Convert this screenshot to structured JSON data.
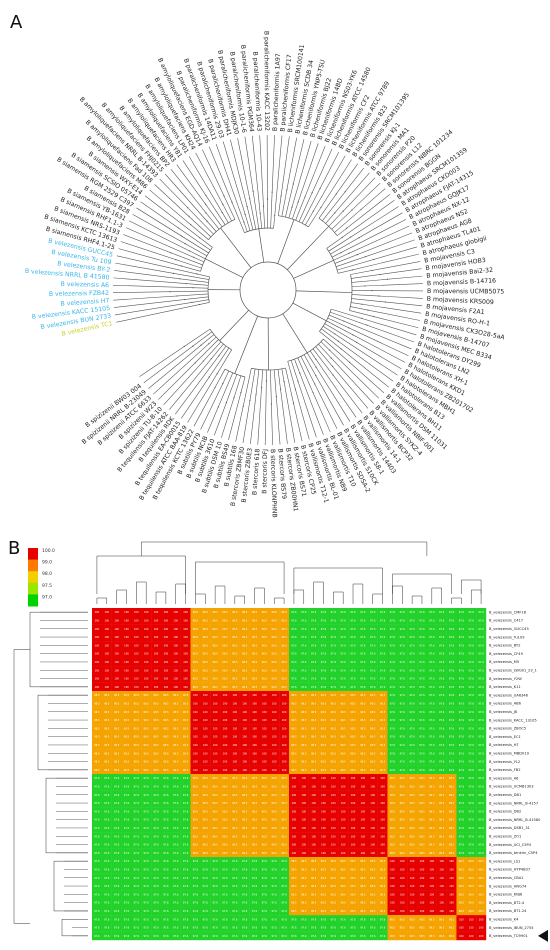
{
  "figure": {
    "panel_a_label": "A",
    "panel_b_label": "B"
  },
  "panel_a": {
    "type": "circular-phylogenetic-tree",
    "colors": {
      "branch": "#555555",
      "label": "#222222",
      "highlight_cyan": "#38b6e8",
      "highlight_yellow": "#c8d22a"
    },
    "taxa": [
      "B velezensis TC1",
      "B velezensis BUN 2733",
      "B velezensis KACC 15105",
      "B velezensis H7",
      "B velezensis FZB42",
      "B velezensis A6",
      "B velezensis NRRL B 41580",
      "B velezensis BY-2",
      "B velezensis Tu 109",
      "B velezensis GUCC45",
      "B siamensis RHF4.1-25",
      "B siamensis KCTC 13613",
      "B siamensis NRS-1193",
      "B siamensis RHF1.1-3",
      "B siamensis YB-1631",
      "B siamensis B28",
      "B siamensis RGM 2529 C397",
      "B siamensis SCSIO 05746",
      "B siamensis WXY-E14",
      "B amyloliquefaciens M86",
      "B amyloliquefaciens Fad 108",
      "B amyloliquefaciens NRRL B-14393",
      "B amyloliquefaciens FHJ0215",
      "B amyloliquefaciens BP2",
      "B amyloliquefaciens HR3",
      "B amyloliquefaciens Y81",
      "B amyloliquefaciens LP01",
      "B amyloliquefaciens KH24",
      "B amyloliquefaciens EGD-AQ14",
      "B paralicheniformis KJ-16",
      "B paralicheniformis 14DA11",
      "B paralicheniformis 29.03",
      "B paralicheniformis DH41",
      "B paralicheniformis MDJK30",
      "B paralicheniformis 10-1-6",
      "B paralicheniformis PGM364",
      "B paralicheniformis 10-43",
      "B paralicheniformis KACC 13202",
      "B paralicheniformis 1A97",
      "B paralicheniformis CF17",
      "B licheniformis SRCM100141",
      "B licheniformis SCDB 34",
      "B licheniformis YNP5-TSU",
      "B licheniformis BJ22",
      "B licheniformis 14BD",
      "B licheniformis NS03-YK6",
      "B licheniformis ATCC 14580",
      "B licheniformis CF2",
      "B licheniformis ATCC 9789",
      "B licheniformis 823",
      "B sonorensis SRCM101395",
      "B sonorensis KJ-1",
      "B sonorensis MA1",
      "B sonorensis P20",
      "B sonorensis L12",
      "B sonorensis NBRC 101234",
      "B sonorensis BGGN",
      "B atrophaeus SRCM101359",
      "B atrophaeus CKD003",
      "B atrophaeus FJAT-14315",
      "B atrophaeus GQJK17",
      "B atrophaeus NX-12",
      "B atrophaeus NS2",
      "B atrophaeus AG8",
      "B atrophaeus TL401",
      "B atrophaeus globigii",
      "B mojavensis C3",
      "B mojavensis HOB3",
      "B mojavensis Bai2-32",
      "B mojavensis B-14716",
      "B mojavensis UCMB5075",
      "B mojavensis KRS009",
      "B mojavensis F2A1",
      "B mojavensis RO-H-1",
      "B mojavensis CK3O28-5aA",
      "B mojavensis B-14707",
      "B mojavensis MEC B334",
      "B halotolerans DY299",
      "B halotolerans LN2",
      "B halotolerans XH-1",
      "B halotolerans KKD1",
      "B halotolerans ZB201702",
      "B halotolerans MBH1",
      "B halotolerans B13",
      "B halotolerans BH11",
      "B vallismortis DSM 11031",
      "B vallismortis NBIF-001",
      "B vallismortis SYKZ-4",
      "B vallismortis BCP32",
      "B vallismortis 14-1",
      "B vallismortis 14403",
      "B vallismortis 58-1",
      "B vallismortis S10CK",
      "B vallismortis SDSA-2",
      "B vallismortis T10",
      "B vallismortis NB9",
      "B vallismortis BL-01",
      "B vallismortis T12-1",
      "B stercoris CP25",
      "B stercoris BS71",
      "B stercoris ZB00HN1",
      "B stercoris BS79",
      "B stercoris KLONPHNB 1",
      "B stercoris DFJ",
      "B stercoris 618",
      "B stercoris ZB0E3",
      "B stercoris ZBMF30",
      "B subtilis 168",
      "B subtilis BS49",
      "B subtilis DSM 10",
      "B subtilis 3610",
      "B subtilis NCIB",
      "B subtilis PY79",
      "B tequilensis KCTC 13622",
      "B tequilensis ATCC BAA-819",
      "B tequilensis EA-CB0015",
      "B tequilensis RDK",
      "B tequilensis FJAT-14262",
      "B spizizenii TU-B-10",
      "B spizizenii W23",
      "B spizizenii ATCC 6633",
      "B spizizenii NRRL B-23049",
      "B spizizenii BW03 004"
    ],
    "highlighted_taxa_cyan": [
      1,
      2,
      3,
      4,
      5,
      6,
      7,
      8,
      9
    ],
    "highlighted_taxa_yellow": [
      0
    ]
  },
  "panel_b": {
    "type": "heatmap",
    "legend": {
      "ticks": [
        "100.0",
        "99.0",
        "98.0",
        "97.5",
        "97.0"
      ],
      "colors": [
        "#e60000",
        "#ff7a00",
        "#f2d000",
        "#9be600",
        "#00d400"
      ]
    },
    "strains": [
      "B_velezensis_CMF18",
      "B_velezensis_C417",
      "B_velezensis_GUCC45",
      "B_velezensis_Tu109",
      "B_velezensis_BY2",
      "B_velezensis_CF49",
      "B_velezensis_M5",
      "B_velezensis_LWG01_23_1",
      "B_velezensis_Y2W",
      "B_velezensis_K11",
      "B_velezensis_UA6346",
      "B_velezensis_AB6",
      "B_velezensis_J8",
      "B_velezensis_KACC_13105",
      "B_velezensis_ZBOC5",
      "B_velezensis_EC1",
      "B_velezensis_H7",
      "B_velezensis_MBD019",
      "B_velezensis_YL2",
      "B_velezensis_FB2",
      "B_velezensis_A6",
      "B_velezensis_UCMB1303",
      "B_velezensis_DB1",
      "B_velezensis_NRRL_B-4157",
      "B_velezensis_DB2",
      "B_velezensis_NRRL_B-41580",
      "B_velezensis_DSB1_31",
      "B_velezensis_ZO1",
      "B_velezensis_UCI_C5P4",
      "B_velezensis_tenkrin_C5P4",
      "B_velezensis_LS1",
      "B_velezensis_HYP4B37",
      "B_velezensis_CBA1",
      "B_velezensis_HNG74",
      "B_velezensis_KNJ6",
      "B_velezensis_BT2.4",
      "B_velezensis_BT1.24",
      "B_velezensis_K4",
      "B_velezensis_IBUN_2755",
      "B_velezensis_TC9H01"
    ],
    "cluster_blocks": [
      {
        "start": 0,
        "end": 9,
        "label_mode": "red"
      },
      {
        "start": 10,
        "end": 19,
        "label_mode": "red"
      },
      {
        "start": 20,
        "end": 29,
        "label_mode": "red"
      },
      {
        "start": 30,
        "end": 36,
        "label_mode": "red"
      },
      {
        "start": 37,
        "end": 39,
        "label_mode": "red"
      }
    ],
    "cell_values": {
      "same_block": "100",
      "near_block": "98.5",
      "far_block": "97.6"
    },
    "selected_marker": "right-pointing-triangle"
  }
}
